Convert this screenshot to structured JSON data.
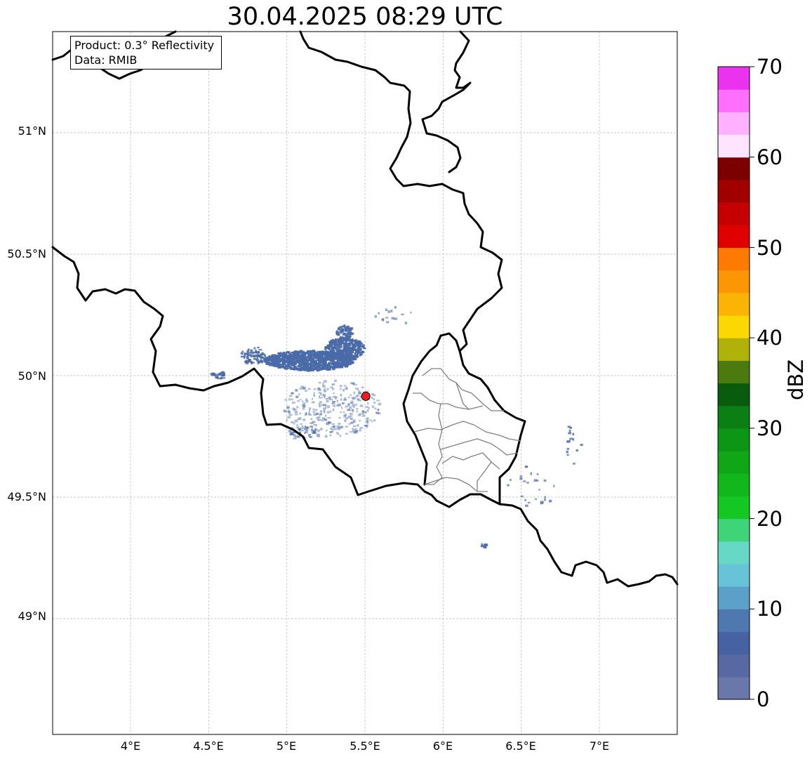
{
  "title": "30.04.2025 08:29 UTC",
  "info": {
    "product": "Product: 0.3° Reflectivity",
    "data": "Data: RMIB"
  },
  "map": {
    "lon_range": [
      3.5,
      7.5
    ],
    "lat_range": [
      48.5,
      51.4
    ],
    "lat_labels": [
      "51°N",
      "50.5°N",
      "50°N",
      "49.5°N",
      "49°N"
    ],
    "lon_labels": [
      "4°E",
      "4.5°E",
      "5°E",
      "5.5°E",
      "6°E",
      "6.5°E",
      "7°E"
    ],
    "radar_site": {
      "lon": 5.505,
      "lat": 49.915,
      "color": "#ee1c1c"
    },
    "border_color": "#000000",
    "province_color": "#808080",
    "echo_color": "#4a6aa8"
  },
  "colorbar": {
    "unit": "dBZ",
    "ticks": [
      "0",
      "10",
      "20",
      "30",
      "40",
      "50",
      "60",
      "70"
    ],
    "min": 0,
    "max": 70,
    "colors": [
      "#6977aa",
      "#5868a2",
      "#4762a3",
      "#4d79b0",
      "#5aa0c9",
      "#68c3d9",
      "#66d8c5",
      "#3fd477",
      "#15c723",
      "#12b71c",
      "#0fa718",
      "#0d9616",
      "#0b7f13",
      "#085c0c",
      "#4b7a0e",
      "#b0b20a",
      "#fbd802",
      "#fbb404",
      "#fc9604",
      "#fe7a00",
      "#e00000",
      "#c40000",
      "#a20000",
      "#7c0000",
      "#ffe3ff",
      "#ffb1ff",
      "#ff6ffe",
      "#eb33ef"
    ]
  }
}
